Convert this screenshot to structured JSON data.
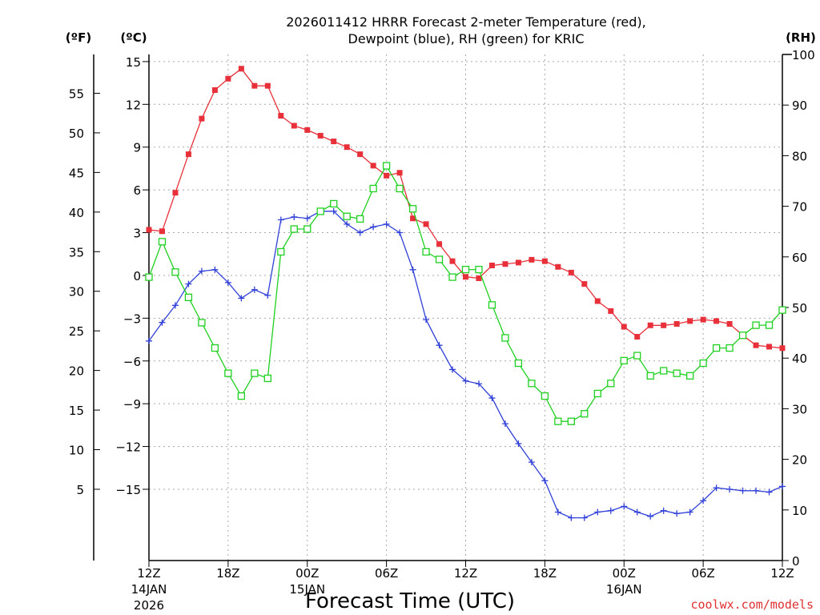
{
  "chart_data": {
    "type": "line",
    "title_line1": "2026011412 HRRR Forecast 2-meter Temperature (red),",
    "title_line2": "Dewpoint (blue), RH (green) for KRIC",
    "unit_f": "(ºF)",
    "unit_c": "(ºC)",
    "unit_rh": "(RH)",
    "xlabel": "Forecast Time (UTC)",
    "credit": "coolwx.com/models",
    "x_hours": [
      0,
      1,
      2,
      3,
      4,
      5,
      6,
      7,
      8,
      9,
      10,
      11,
      12,
      13,
      14,
      15,
      16,
      17,
      18,
      19,
      20,
      21,
      22,
      23,
      24,
      25,
      26,
      27,
      28,
      29,
      30,
      31,
      32,
      33,
      34,
      35,
      36,
      37,
      38,
      39,
      40,
      41,
      42,
      43,
      44,
      45,
      46,
      47,
      48
    ],
    "x_ticks": [
      {
        "hour": 0,
        "label": "12Z",
        "sub1": "14JAN",
        "sub2": "2026"
      },
      {
        "hour": 6,
        "label": "18Z"
      },
      {
        "hour": 12,
        "label": "00Z",
        "sub1": "15JAN"
      },
      {
        "hour": 18,
        "label": "06Z"
      },
      {
        "hour": 24,
        "label": "12Z"
      },
      {
        "hour": 30,
        "label": "18Z"
      },
      {
        "hour": 36,
        "label": "00Z",
        "sub1": "16JAN"
      },
      {
        "hour": 42,
        "label": "06Z"
      },
      {
        "hour": 48,
        "label": "12Z"
      }
    ],
    "y_celsius": {
      "min": -20,
      "max": 15.5,
      "ticks": [
        15,
        12,
        9,
        6,
        3,
        0,
        -3,
        -6,
        -9,
        -12,
        -15
      ]
    },
    "y_fahrenheit": {
      "ticks": [
        55,
        50,
        45,
        40,
        35,
        30,
        25,
        20,
        15,
        10,
        5
      ]
    },
    "y_rh": {
      "min": 0,
      "max": 100,
      "ticks": [
        100,
        90,
        80,
        70,
        60,
        50,
        40,
        30,
        20,
        10,
        0
      ]
    },
    "series": [
      {
        "name": "Temperature",
        "color": "#e8303a",
        "marker": "filled-square",
        "values": [
          3.2,
          3.1,
          5.8,
          8.5,
          11.0,
          13.0,
          13.8,
          14.5,
          13.3,
          13.3,
          11.2,
          10.5,
          10.2,
          9.8,
          9.4,
          9.0,
          8.5,
          7.7,
          7.0,
          7.2,
          4.0,
          3.6,
          2.2,
          1.0,
          -0.1,
          -0.2,
          0.7,
          0.8,
          0.9,
          1.1,
          1.0,
          0.6,
          0.2,
          -0.6,
          -1.8,
          -2.5,
          -3.6,
          -4.3,
          -3.5,
          -3.5,
          -3.4,
          -3.2,
          -3.1,
          -3.2,
          -3.4,
          -4.2,
          -4.9,
          -5.0,
          -5.1
        ]
      },
      {
        "name": "Dewpoint",
        "color": "#3040d8",
        "marker": "plus",
        "values": [
          -4.6,
          -3.3,
          -2.1,
          -0.6,
          0.3,
          0.4,
          -0.5,
          -1.6,
          -1.0,
          -1.4,
          3.9,
          4.1,
          4.0,
          4.5,
          4.5,
          3.6,
          3.0,
          3.4,
          3.6,
          3.0,
          0.4,
          -3.1,
          -4.9,
          -6.6,
          -7.4,
          -7.6,
          -8.6,
          -10.4,
          -11.8,
          -13.1,
          -14.4,
          -16.6,
          -17.0,
          -17.0,
          -16.6,
          -16.5,
          -16.2,
          -16.6,
          -16.9,
          -16.5,
          -16.7,
          -16.6,
          -15.8,
          -14.9,
          -15.0,
          -15.1,
          -15.1,
          -15.2,
          -14.8
        ]
      },
      {
        "name": "RH",
        "color": "#20d020",
        "marker": "open-square",
        "values": [
          56,
          63,
          57,
          52,
          47,
          42,
          37,
          32.5,
          37,
          36,
          61,
          65.5,
          65.5,
          69,
          70.5,
          68,
          67.5,
          73.5,
          78,
          73.5,
          69.5,
          61,
          59.5,
          56,
          57.5,
          57.5,
          50.5,
          44,
          39,
          35,
          32.5,
          27.5,
          27.5,
          29,
          33,
          35,
          39.5,
          40.5,
          36.5,
          37.5,
          37,
          36.5,
          39,
          42,
          42,
          44.5,
          46.5,
          46.5,
          49.5
        ]
      }
    ]
  }
}
